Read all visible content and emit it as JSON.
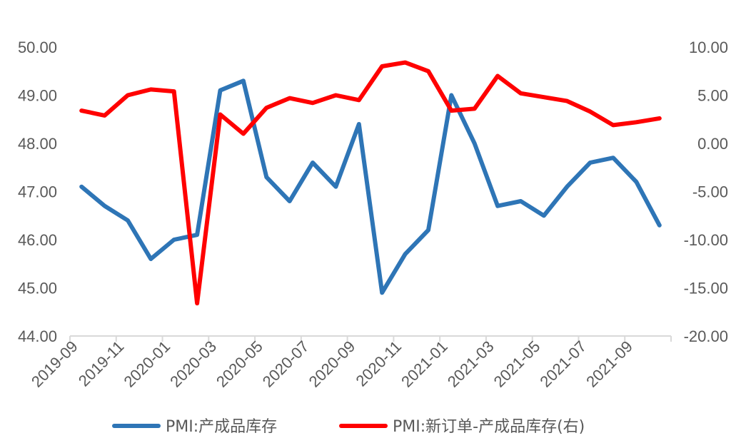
{
  "chart_data": {
    "type": "line",
    "categories": [
      "2019-09",
      "2019-10",
      "2019-11",
      "2019-12",
      "2020-01",
      "2020-02",
      "2020-03",
      "2020-04",
      "2020-05",
      "2020-06",
      "2020-07",
      "2020-08",
      "2020-09",
      "2020-10",
      "2020-11",
      "2020-12",
      "2021-01",
      "2021-02",
      "2021-03",
      "2021-04",
      "2021-05",
      "2021-06",
      "2021-07",
      "2021-08",
      "2021-09",
      "2021-10"
    ],
    "x_tick_labels": [
      "2019-09",
      "2019-11",
      "2020-01",
      "2020-03",
      "2020-05",
      "2020-07",
      "2020-09",
      "2020-11",
      "2021-01",
      "2021-03",
      "2021-05",
      "2021-07",
      "2021-09"
    ],
    "y_left": {
      "min": 44,
      "max": 50,
      "step": 1,
      "tick_labels": [
        "44.00",
        "45.00",
        "46.00",
        "47.00",
        "48.00",
        "49.00",
        "50.00"
      ]
    },
    "y_right": {
      "min": -20,
      "max": 10,
      "step": 5,
      "tick_labels": [
        "-20.00",
        "-15.00",
        "-10.00",
        "-5.00",
        "0.00",
        "5.00",
        "10.00"
      ]
    },
    "grid": false,
    "legend_position": "bottom",
    "series": [
      {
        "name": "PMI:产成品库存",
        "axis": "left",
        "color": "#2e75b6",
        "values": [
          47.1,
          46.7,
          46.4,
          45.6,
          46.0,
          46.1,
          49.1,
          49.3,
          47.3,
          46.8,
          47.6,
          47.1,
          48.4,
          44.9,
          45.7,
          46.2,
          49.0,
          48.0,
          46.7,
          46.8,
          46.5,
          47.1,
          47.6,
          47.7,
          47.2,
          46.3
        ]
      },
      {
        "name": "PMI:新订单-产成品库存(右)",
        "axis": "right",
        "color": "#ff0000",
        "values": [
          3.4,
          2.9,
          5.0,
          5.6,
          5.4,
          -16.6,
          3.0,
          1.0,
          3.7,
          4.7,
          4.2,
          5.0,
          4.5,
          8.0,
          8.4,
          7.5,
          3.4,
          3.6,
          7.0,
          5.2,
          4.8,
          4.4,
          3.3,
          1.9,
          2.2,
          2.6
        ]
      }
    ]
  }
}
